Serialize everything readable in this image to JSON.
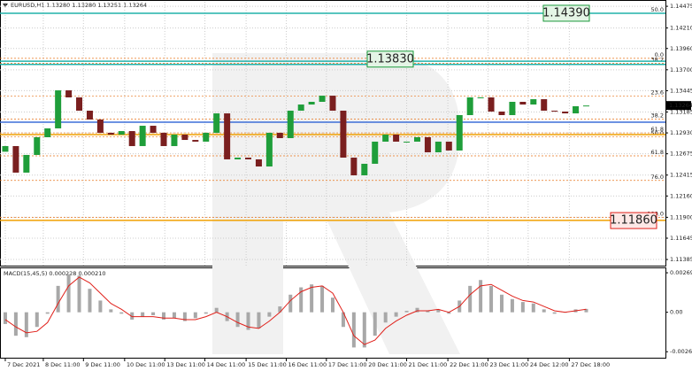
{
  "chart_data": {
    "type": "candlestick",
    "title": "EURUSD,H1  1.13280 1.13280 1.13251 1.13264",
    "x": [
      0,
      1,
      2,
      3,
      4,
      5,
      6,
      7,
      8,
      9,
      10,
      11,
      12,
      13,
      14,
      15,
      16,
      17,
      18,
      19,
      20,
      21,
      22,
      23,
      24,
      25,
      26,
      27,
      28,
      29,
      30,
      31,
      32,
      33,
      34,
      35,
      36,
      37,
      38,
      39,
      40,
      41,
      42,
      43,
      44,
      45,
      46,
      47,
      48,
      49,
      50,
      51,
      52,
      53,
      54,
      55
    ],
    "open": [
      1.127,
      1.12769,
      1.12445,
      1.12661,
      1.12877,
      1.12985,
      1.13449,
      1.13363,
      1.13201,
      1.13093,
      1.12931,
      1.12909,
      1.12952,
      1.12769,
      1.13017,
      1.12931,
      1.12769,
      1.12909,
      1.12844,
      1.12823,
      1.12931,
      1.13168,
      1.12607,
      1.12628,
      1.12607,
      1.1252,
      1.12931,
      1.12866,
      1.13201,
      1.13276,
      1.13309,
      1.13384,
      1.13201,
      1.12628,
      1.12412,
      1.12553,
      1.12823,
      1.12909,
      1.12823,
      1.12823,
      1.12877,
      1.12693,
      1.12823,
      1.12715,
      1.13147,
      1.13363,
      1.13363,
      1.1319,
      1.13147,
      1.13309,
      1.13276,
      1.13341,
      1.13201,
      1.1319,
      1.13168,
      1.13255
    ],
    "close": [
      1.12769,
      1.12445,
      1.12661,
      1.12877,
      1.12985,
      1.13449,
      1.13363,
      1.13201,
      1.13093,
      1.12931,
      1.12909,
      1.12952,
      1.12769,
      1.13017,
      1.12931,
      1.12769,
      1.12909,
      1.12844,
      1.12823,
      1.12931,
      1.13168,
      1.12607,
      1.12628,
      1.12607,
      1.1252,
      1.12931,
      1.12866,
      1.13201,
      1.13276,
      1.13309,
      1.13384,
      1.13201,
      1.12628,
      1.12412,
      1.12553,
      1.12823,
      1.12909,
      1.12823,
      1.12823,
      1.12877,
      1.12693,
      1.12823,
      1.12715,
      1.13147,
      1.13363,
      1.13363,
      1.1319,
      1.13147,
      1.13309,
      1.13276,
      1.13341,
      1.13201,
      1.1319,
      1.13168,
      1.13255,
      1.13264
    ],
    "up_color": "#1f9e3a",
    "down_color": "#7a1f1f",
    "xlim": [
      -0.5,
      62.5
    ],
    "xticks": [
      {
        "value": 0,
        "label": "7 Dec 2021"
      },
      {
        "value": 3.6,
        "label": "8 Dec 11:00"
      },
      {
        "value": 7.4,
        "label": "9 Dec 11:00"
      },
      {
        "value": 11.3,
        "label": "10 Dec 11:00"
      },
      {
        "value": 15.1,
        "label": "13 Dec 11:00"
      },
      {
        "value": 18.9,
        "label": "14 Dec 11:00"
      },
      {
        "value": 22.8,
        "label": "15 Dec 11:00"
      },
      {
        "value": 26.6,
        "label": "16 Dec 11:00"
      },
      {
        "value": 30.4,
        "label": "17 Dec 11:00"
      },
      {
        "value": 34.2,
        "label": "20 Dec 11:00"
      },
      {
        "value": 38.0,
        "label": "21 Dec 11:00"
      },
      {
        "value": 41.9,
        "label": "22 Dec 11:00"
      },
      {
        "value": 45.7,
        "label": "23 Dec 11:00"
      },
      {
        "value": 49.5,
        "label": "24 Dec 12:00"
      },
      {
        "value": 53.4,
        "label": "27 Dec 18:00"
      }
    ],
    "ylim": [
      1.1131,
      1.1453
    ],
    "yticks": [
      1.14475,
      {
        "value": 1.1421,
        "label": "1.14210"
      },
      {
        "value": 1.1396,
        "label": "1.13960"
      },
      {
        "value": 1.137,
        "label": "1.13700"
      },
      1.13445,
      1.13185,
      {
        "value": 1.1293,
        "label": "1.12930"
      },
      1.12675,
      1.12415,
      {
        "value": 1.1216,
        "label": "1.12160"
      },
      {
        "value": 1.119,
        "label": "1.11900"
      },
      1.11645,
      1.11385
    ],
    "grid": true,
    "current_price": 1.13264,
    "hlines": [
      {
        "value": 1.1439,
        "color": "#20b2aa"
      },
      {
        "value": 1.13805,
        "color": "#20b2aa"
      },
      {
        "value": 1.13765,
        "color": "#20b2aa"
      },
      {
        "value": 1.1306,
        "color": "#3d6fd8"
      },
      {
        "value": 1.12909,
        "color": "#f0a000"
      },
      {
        "value": 1.11862,
        "color": "#f0a000"
      }
    ],
    "price_labels": [
      {
        "value": 1.1439,
        "label": "1.14390",
        "color": "#1a9a3a"
      },
      {
        "value": 1.1383,
        "label": "1.13830",
        "color": "#1a9a3a"
      },
      {
        "value": 1.1186,
        "label": "1.11860",
        "color": "#e0201a"
      }
    ],
    "fib_levels": [
      {
        "value": 1.1439,
        "label": "50.0"
      },
      {
        "value": 1.1384,
        "label": "0.0"
      },
      {
        "value": 1.1378,
        "label": "38.2"
      },
      {
        "value": 1.1338,
        "label": "23.6"
      },
      {
        "value": 1.131,
        "label": "38.2"
      },
      {
        "value": 1.1293,
        "label": "61.8"
      },
      {
        "value": 1.1288,
        "label": "50.0"
      },
      {
        "value": 1.1265,
        "label": "61.8"
      },
      {
        "value": 1.1235,
        "label": "76.0"
      },
      {
        "value": 1.119,
        "label": "100.0"
      }
    ],
    "fib_color": "#e8741a",
    "macd": {
      "label": "MACD(15,45,5) 0.000228 0.000210",
      "ylim": [
        -0.0031,
        0.003
      ],
      "yticks": [
        0.002694,
        {
          "value": 0,
          "label": "0.00"
        },
        -0.002691
      ],
      "color": "#a8a8a8",
      "signal_color": "#e0201a",
      "values": [
        -0.0008,
        -0.0016,
        -0.0017,
        -0.001,
        -0.0001,
        0.0018,
        0.0026,
        0.0025,
        0.0016,
        0.0008,
        0.0002,
        -0.0001,
        -0.0005,
        -0.0003,
        -0.0002,
        -0.0005,
        -0.0004,
        -0.0006,
        -0.0004,
        -0.0001,
        0.0003,
        -0.0006,
        -0.001,
        -0.0012,
        -0.0011,
        -0.0003,
        0.0004,
        0.0012,
        0.0017,
        0.0019,
        0.0018,
        0.001,
        -0.001,
        -0.0024,
        -0.0024,
        -0.0016,
        -0.0007,
        -0.0003,
        0.0001,
        0.0003,
        0.0001,
        0.0002,
        -0.0001,
        0.0008,
        0.0018,
        0.0022,
        0.0018,
        0.0012,
        0.0009,
        0.0007,
        0.0006,
        0.0002,
        -0.0001,
        0,
        0.0002,
        0.000228
      ],
      "signal": [
        -0.0005,
        -0.001,
        -0.0014,
        -0.0013,
        -0.0007,
        0.0006,
        0.0018,
        0.0024,
        0.002,
        0.0013,
        0.0006,
        0.0002,
        -0.0003,
        -0.0003,
        -0.0003,
        -0.0004,
        -0.0004,
        -0.0005,
        -0.0005,
        -0.0003,
        0,
        -0.0003,
        -0.0007,
        -0.001,
        -0.0011,
        -0.0006,
        0,
        0.0008,
        0.0014,
        0.0017,
        0.0018,
        0.0013,
        0,
        -0.0016,
        -0.0022,
        -0.0019,
        -0.0011,
        -0.0006,
        -0.0002,
        0.0001,
        0.0001,
        0.0002,
        0,
        0.0004,
        0.0012,
        0.0018,
        0.0019,
        0.0015,
        0.0011,
        0.0008,
        0.0007,
        0.0004,
        0.0001,
        0,
        0.0001,
        0.00021
      ]
    }
  }
}
